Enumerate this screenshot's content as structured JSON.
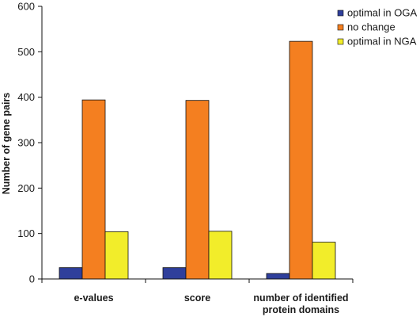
{
  "chart_data": {
    "type": "bar",
    "title": "",
    "xlabel": "",
    "ylabel": "Number of gene pairs",
    "ylim": [
      0,
      600
    ],
    "yticks": [
      0,
      100,
      200,
      300,
      400,
      500,
      600
    ],
    "grid": false,
    "legend_position": "top-right",
    "categories": [
      [
        "e-values"
      ],
      [
        "score"
      ],
      [
        "number of identified",
        "protein domains"
      ]
    ],
    "series": [
      {
        "name": "optimal in OGA",
        "color": "#2f3f9b",
        "values": [
          25,
          25,
          12
        ]
      },
      {
        "name": "no change",
        "color": "#f47f20",
        "values": [
          394,
          393,
          523
        ]
      },
      {
        "name": "optimal in NGA",
        "color": "#f2ed2a",
        "values": [
          104,
          105,
          81
        ]
      }
    ]
  }
}
